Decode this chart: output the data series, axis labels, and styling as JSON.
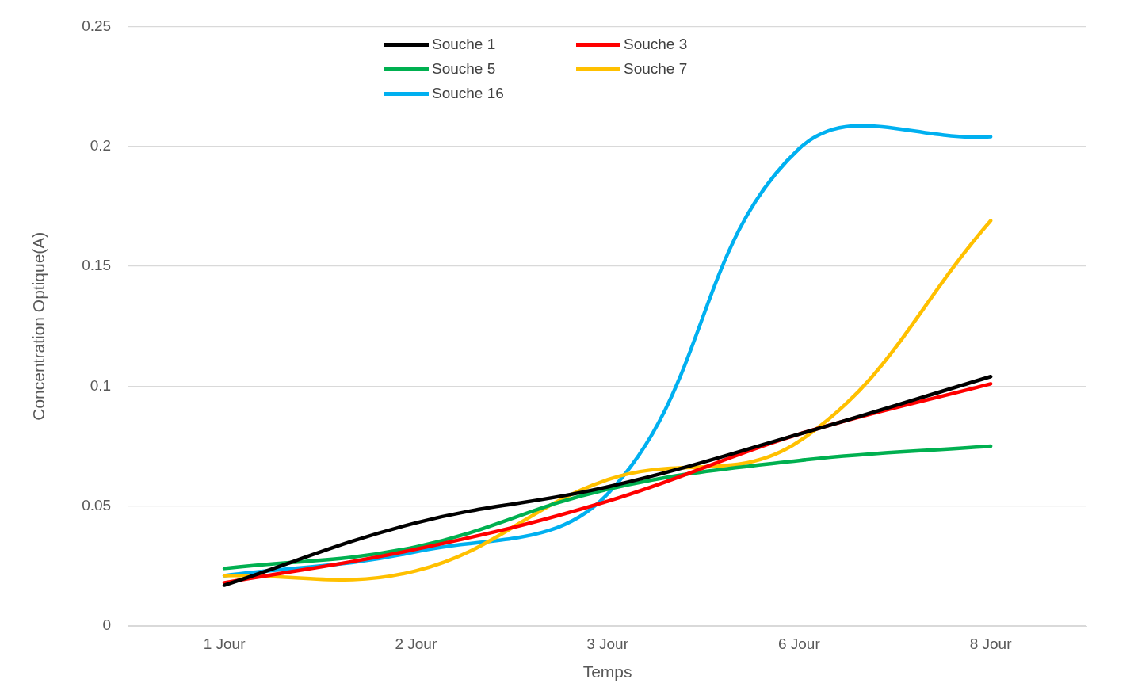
{
  "chart_data": {
    "type": "line",
    "xlabel": "Temps",
    "ylabel": "Concentration Optique(A)",
    "categories": [
      "1 Jour",
      "2 Jour",
      "3 Jour",
      "6 Jour",
      "8 Jour"
    ],
    "series": [
      {
        "name": "Souche 1",
        "color": "#000000",
        "values": [
          0.017,
          0.043,
          0.058,
          0.08,
          0.104
        ]
      },
      {
        "name": "Souche 3",
        "color": "#ff0000",
        "values": [
          0.018,
          0.032,
          0.052,
          0.08,
          0.101
        ]
      },
      {
        "name": "Souche 5",
        "color": "#00b050",
        "values": [
          0.024,
          0.033,
          0.057,
          0.069,
          0.075
        ]
      },
      {
        "name": "Souche 7",
        "color": "#ffc000",
        "values": [
          0.021,
          0.023,
          0.061,
          0.077,
          0.169
        ]
      },
      {
        "name": "Souche 16",
        "color": "#00b0f0",
        "values": [
          0.021,
          0.031,
          0.055,
          0.199,
          0.204
        ]
      }
    ],
    "ylim": [
      0,
      0.25
    ],
    "yticks": [
      0,
      0.05,
      0.1,
      0.15,
      0.2,
      0.25
    ],
    "grid": "y",
    "legend": "top",
    "marker": "none",
    "line_style": "solid"
  }
}
